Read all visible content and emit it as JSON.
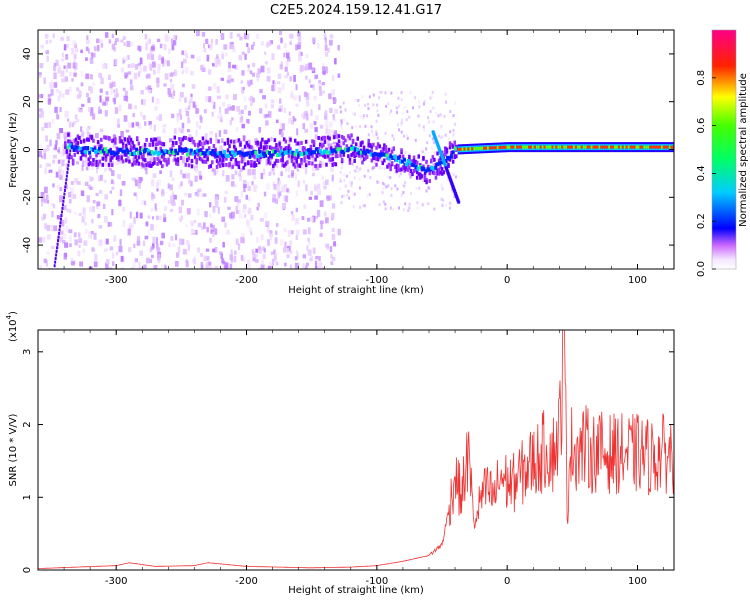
{
  "title": "C2E5.2024.159.12.41.G17",
  "chart_data": [
    {
      "type": "heatmap",
      "xlabel": "Height of straight line (km)",
      "ylabel": "Frequency (Hz)",
      "xlim": [
        -360,
        128
      ],
      "ylim": [
        -50,
        50
      ],
      "xticks": [
        -300,
        -200,
        -100,
        0,
        100
      ],
      "xtick_labels": [
        "-300",
        "-200",
        "-100",
        "0",
        "100"
      ],
      "yticks": [
        -40,
        -20,
        0,
        20,
        40
      ],
      "ytick_labels": [
        "-40",
        "-20",
        "0",
        "20",
        "40"
      ],
      "colorbar": {
        "label": "Normalized spectral amplitude",
        "range": [
          0,
          1
        ],
        "ticks": [
          0.0,
          0.2,
          0.4,
          0.6,
          0.8
        ],
        "tick_labels": [
          "0.0",
          "0.2",
          "0.4",
          "0.6",
          "0.8"
        ],
        "colormap": [
          "#ffffff",
          "#ff00ff",
          "#0000ff",
          "#00ffff",
          "#00ff00",
          "#ffff00",
          "#ff0000",
          "#ff0080"
        ]
      },
      "dominant_band": [
        {
          "x": -335,
          "y": 0
        },
        {
          "x": -300,
          "y": -1
        },
        {
          "x": -250,
          "y": -1
        },
        {
          "x": -200,
          "y": -2
        },
        {
          "x": -150,
          "y": -1
        },
        {
          "x": -120,
          "y": 0
        },
        {
          "x": -100,
          "y": -2
        },
        {
          "x": -80,
          "y": -5
        },
        {
          "x": -62,
          "y": -9
        },
        {
          "x": -50,
          "y": -5
        },
        {
          "x": -40,
          "y": 0
        },
        {
          "x": 0,
          "y": 1
        },
        {
          "x": 50,
          "y": 1
        },
        {
          "x": 128,
          "y": 1
        }
      ],
      "grid": false
    },
    {
      "type": "line",
      "xlabel": "Height of straight line (km)",
      "ylabel": "SNR (10 * V/V)",
      "y_multiplier": "(x10^4)",
      "y_multiplier_base": "(x10",
      "y_multiplier_exp": "4",
      "y_multiplier_close": ")",
      "xlim": [
        -360,
        128
      ],
      "ylim": [
        0,
        3.3
      ],
      "xticks": [
        -300,
        -200,
        -100,
        0,
        100
      ],
      "xtick_labels": [
        "-300",
        "-200",
        "-100",
        "0",
        "100"
      ],
      "yticks": [
        0,
        1,
        2,
        3
      ],
      "ytick_labels": [
        "0",
        "1",
        "2",
        "3"
      ],
      "color": "#ee3333",
      "series": [
        {
          "x": [
            -360,
            -330,
            -300,
            -290,
            -270,
            -240,
            -230,
            -200,
            -150,
            -120,
            -100,
            -80,
            -60,
            -50,
            -45,
            -40,
            -35,
            -30,
            -25,
            -20,
            -15,
            -10,
            -5,
            0,
            5,
            10,
            15,
            20,
            25,
            30,
            35,
            40,
            44,
            46,
            48,
            50,
            55,
            60,
            65,
            70,
            75,
            80,
            90,
            98,
            100,
            102,
            110,
            120,
            128
          ],
          "y": [
            0.02,
            0.04,
            0.06,
            0.1,
            0.05,
            0.06,
            0.1,
            0.05,
            0.03,
            0.04,
            0.06,
            0.12,
            0.2,
            0.35,
            0.8,
            1.3,
            1.0,
            1.6,
            0.6,
            1.0,
            1.1,
            1.0,
            1.3,
            1.2,
            1.2,
            1.3,
            1.4,
            1.5,
            1.55,
            1.7,
            1.6,
            1.9,
            3.2,
            0.7,
            1.7,
            1.7,
            1.65,
            1.7,
            1.6,
            1.65,
            1.6,
            1.6,
            1.6,
            1.6,
            1.6,
            1.6,
            1.55,
            1.6,
            1.6
          ]
        }
      ],
      "grid": false
    }
  ]
}
